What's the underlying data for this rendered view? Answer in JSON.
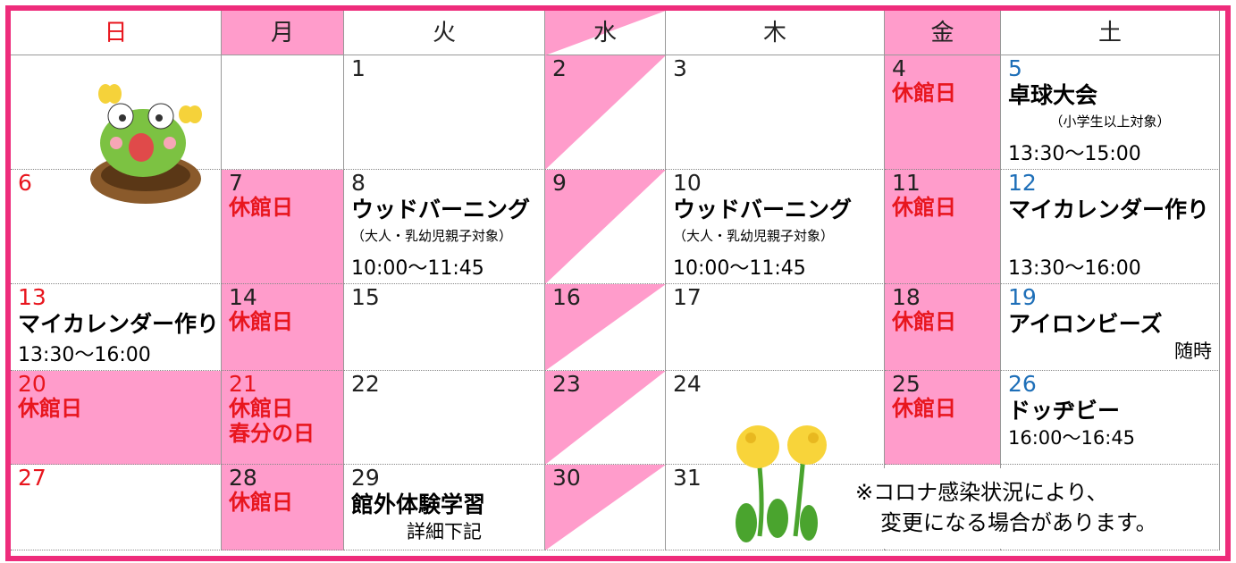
{
  "header": {
    "days": [
      "日",
      "月",
      "火",
      "水",
      "木",
      "金",
      "土"
    ]
  },
  "weeks": [
    [
      {},
      {},
      {
        "date": "1"
      },
      {
        "date": "2"
      },
      {
        "date": "3"
      },
      {
        "date": "4",
        "highlight": true,
        "lines": [
          {
            "text": "休館日",
            "kind": "closed"
          }
        ]
      },
      {
        "date": "5",
        "lines": [
          {
            "text": "卓球大会",
            "kind": "event"
          },
          {
            "text": "（小学生以上対象）",
            "kind": "small",
            "align": "center"
          },
          {
            "text": "13:30～15:00",
            "kind": "time"
          }
        ]
      }
    ],
    [
      {
        "date": "6"
      },
      {
        "date": "7",
        "highlight": true,
        "lines": [
          {
            "text": "休館日",
            "kind": "closed"
          }
        ]
      },
      {
        "date": "8",
        "lines": [
          {
            "text": "ウッドバーニング",
            "kind": "event"
          },
          {
            "text": "（大人・乳幼児親子対象）",
            "kind": "small"
          },
          {
            "text": "10:00～11:45",
            "kind": "time"
          }
        ]
      },
      {
        "date": "9"
      },
      {
        "date": "10",
        "lines": [
          {
            "text": "ウッドバーニング",
            "kind": "event"
          },
          {
            "text": "（大人・乳幼児親子対象）",
            "kind": "small"
          },
          {
            "text": "10:00～11:45",
            "kind": "time"
          }
        ]
      },
      {
        "date": "11",
        "highlight": true,
        "lines": [
          {
            "text": "休館日",
            "kind": "closed"
          }
        ]
      },
      {
        "date": "12",
        "lines": [
          {
            "text": "マイカレンダー作り",
            "kind": "event"
          },
          {
            "text": "13:30～16:00",
            "kind": "time"
          }
        ]
      }
    ],
    [
      {
        "date": "13",
        "lines": [
          {
            "text": "マイカレンダー作り",
            "kind": "event"
          },
          {
            "text": "13:30～16:00",
            "kind": "time"
          }
        ]
      },
      {
        "date": "14",
        "highlight": true,
        "lines": [
          {
            "text": "休館日",
            "kind": "closed"
          }
        ]
      },
      {
        "date": "15"
      },
      {
        "date": "16"
      },
      {
        "date": "17"
      },
      {
        "date": "18",
        "highlight": true,
        "lines": [
          {
            "text": "休館日",
            "kind": "closed"
          }
        ]
      },
      {
        "date": "19",
        "lines": [
          {
            "text": "アイロンビーズ",
            "kind": "event"
          },
          {
            "text": "随時",
            "kind": "plain",
            "align": "right"
          }
        ]
      }
    ],
    [
      {
        "date": "20",
        "highlight": true,
        "lines": [
          {
            "text": "休館日",
            "kind": "closed"
          }
        ]
      },
      {
        "date": "21",
        "highlight": true,
        "date_color": "#e8161e",
        "lines": [
          {
            "text": "休館日",
            "kind": "closed"
          },
          {
            "text": "春分の日",
            "kind": "closed"
          }
        ]
      },
      {
        "date": "22"
      },
      {
        "date": "23"
      },
      {
        "date": "24"
      },
      {
        "date": "25",
        "highlight": true,
        "lines": [
          {
            "text": "休館日",
            "kind": "closed"
          }
        ]
      },
      {
        "date": "26",
        "lines": [
          {
            "text": "ドッヂビー",
            "kind": "event"
          },
          {
            "text": "16:00～16:45",
            "kind": "plain"
          }
        ]
      }
    ],
    [
      {
        "date": "27"
      },
      {
        "date": "28",
        "highlight": true,
        "lines": [
          {
            "text": "休館日",
            "kind": "closed"
          }
        ]
      },
      {
        "date": "29",
        "lines": [
          {
            "text": "館外体験学習",
            "kind": "event"
          },
          {
            "text": "詳細下記",
            "kind": "plain",
            "align": "center"
          }
        ]
      },
      {
        "date": "30"
      },
      {
        "date": "31"
      },
      {},
      {}
    ]
  ],
  "notice": {
    "lines": [
      "※コロナ感染状況により、",
      "変更になる場合があります。"
    ]
  }
}
